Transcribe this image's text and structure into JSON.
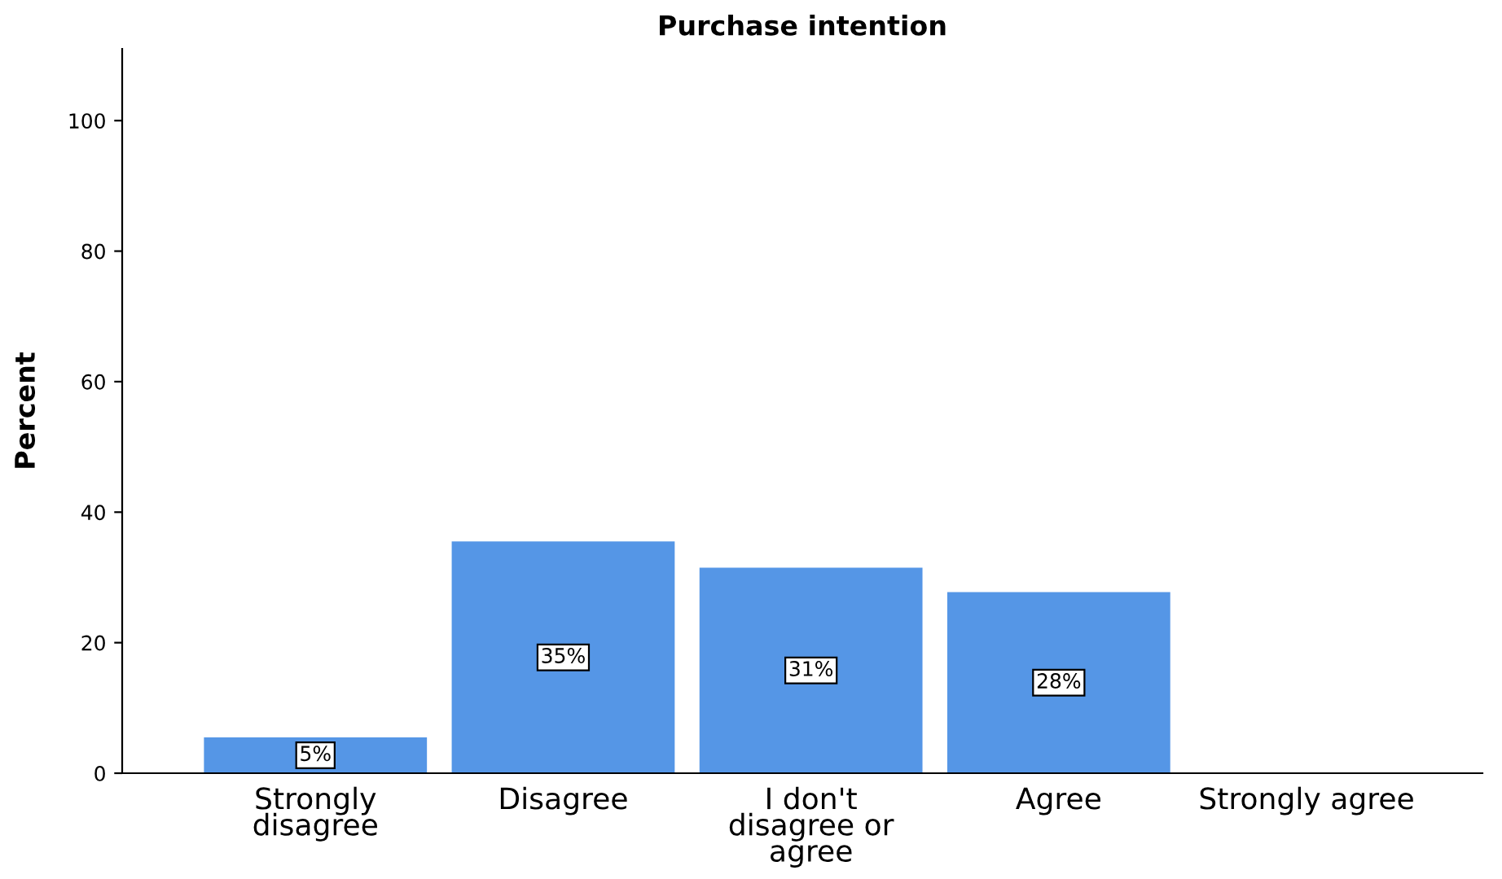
{
  "chart_data": {
    "type": "bar",
    "title": "Purchase intention",
    "ylabel": "Percent",
    "categories": [
      "Strongly disagree",
      "Disagree",
      "I don't disagree or agree",
      "Agree",
      "Strongly agree"
    ],
    "values": [
      5.5,
      35.5,
      31.5,
      27.75,
      0
    ],
    "value_labels": [
      "5%",
      "35%",
      "31%",
      "28%",
      null
    ],
    "color": "#5596e6",
    "ylim": [
      0,
      111
    ],
    "yticks": [
      0,
      20,
      40,
      60,
      80,
      100
    ],
    "grid": false,
    "legend": false
  }
}
